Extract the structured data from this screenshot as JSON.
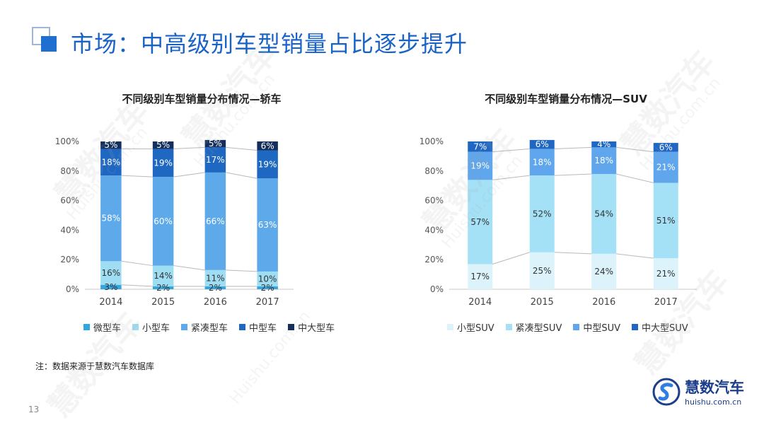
{
  "header": {
    "title": "市场：中高级别车型销量占比逐步提升"
  },
  "note": "注：数据来源于慧数汽车数据库",
  "page_number": "13",
  "logo": {
    "name_cn": "慧数汽车",
    "url": "huishu.com.cn"
  },
  "watermark": {
    "cn": "慧数汽车",
    "en": "Huishu.com.cn"
  },
  "chart_data": [
    {
      "type": "bar",
      "stacked": true,
      "title": "不同级别车型销量分布情况—轿车",
      "categories": [
        "2014",
        "2015",
        "2016",
        "2017"
      ],
      "y_ticks": [
        "0%",
        "20%",
        "40%",
        "60%",
        "80%",
        "100%"
      ],
      "ylim": [
        0,
        100
      ],
      "grid": false,
      "legend": "bottom",
      "series": [
        {
          "name": "微型车",
          "color": "#33a6e0",
          "values": [
            3,
            2,
            2,
            2
          ],
          "labels": [
            "3%",
            "2%",
            "2%",
            "2%"
          ]
        },
        {
          "name": "小型车",
          "color": "#9fddf3",
          "values": [
            16,
            14,
            11,
            10
          ],
          "labels": [
            "16%",
            "14%",
            "11%",
            "10%"
          ]
        },
        {
          "name": "紧凑型车",
          "color": "#5ea9ea",
          "values": [
            58,
            60,
            66,
            63
          ],
          "labels": [
            "58%",
            "60%",
            "66%",
            "63%"
          ]
        },
        {
          "name": "中型车",
          "color": "#1f68c1",
          "values": [
            18,
            19,
            17,
            19
          ],
          "labels": [
            "18%",
            "19%",
            "17%",
            "19%"
          ]
        },
        {
          "name": "中大型车",
          "color": "#142f5c",
          "values": [
            5,
            5,
            5,
            6
          ],
          "labels": [
            "5%",
            "5%",
            "5%",
            "6%"
          ]
        }
      ]
    },
    {
      "type": "bar",
      "stacked": true,
      "title": "不同级别车型销量分布情况—SUV",
      "categories": [
        "2014",
        "2015",
        "2016",
        "2017"
      ],
      "y_ticks": [
        "0%",
        "20%",
        "40%",
        "60%",
        "80%",
        "100%"
      ],
      "ylim": [
        0,
        100
      ],
      "grid": false,
      "legend": "bottom",
      "series": [
        {
          "name": "小型SUV",
          "color": "#dcf3fc",
          "values": [
            17,
            25,
            24,
            21
          ],
          "labels": [
            "17%",
            "25%",
            "24%",
            "21%"
          ]
        },
        {
          "name": "紧凑型SUV",
          "color": "#a4e1f6",
          "values": [
            57,
            52,
            54,
            51
          ],
          "labels": [
            "57%",
            "52%",
            "54%",
            "51%"
          ]
        },
        {
          "name": "中型SUV",
          "color": "#5fa6ec",
          "values": [
            19,
            18,
            18,
            21
          ],
          "labels": [
            "19%",
            "18%",
            "18%",
            "21%"
          ]
        },
        {
          "name": "中大型SUV",
          "color": "#1f67c3",
          "values": [
            7,
            6,
            4,
            6
          ],
          "labels": [
            "7%",
            "6%",
            "4%",
            "6%"
          ]
        }
      ]
    }
  ]
}
